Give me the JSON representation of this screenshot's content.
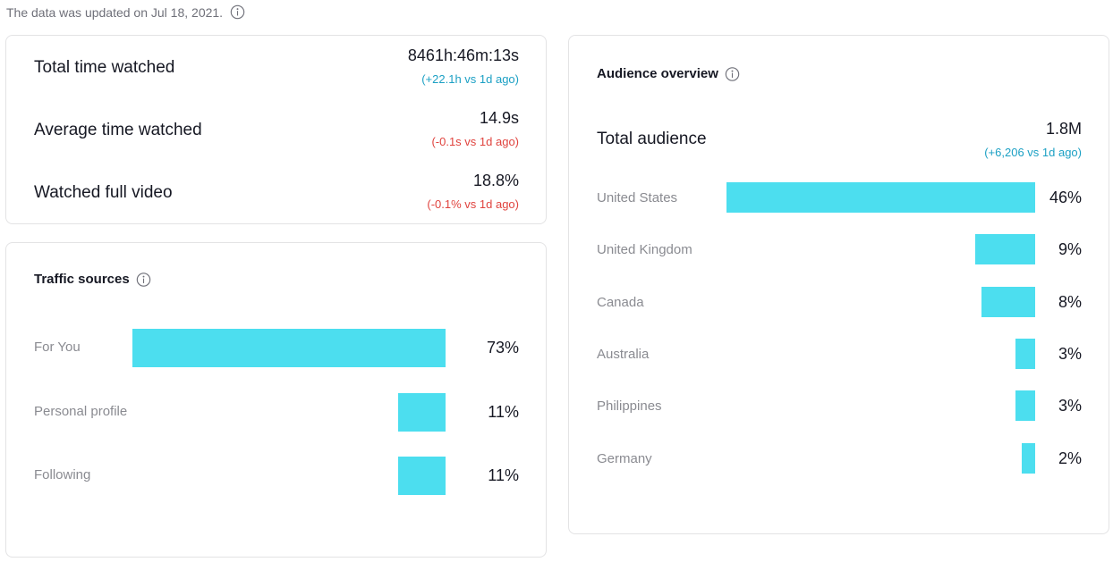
{
  "update_notice": "The data was updated on Jul 18, 2021.",
  "icons": {
    "info": "info-circle-icon"
  },
  "colors": {
    "bar": "#4cdeef",
    "delta_up": "#1ca0c4",
    "delta_down": "#e0433e"
  },
  "stats": [
    {
      "label": "Total time watched",
      "value": "8461h:46m:13s",
      "delta": "(+22.1h vs 1d ago)",
      "trend": "up"
    },
    {
      "label": "Average time watched",
      "value": "14.9s",
      "delta": "(-0.1s vs 1d ago)",
      "trend": "down"
    },
    {
      "label": "Watched full video",
      "value": "18.8%",
      "delta": "(-0.1% vs 1d ago)",
      "trend": "down"
    }
  ],
  "traffic": {
    "title": "Traffic sources",
    "items": [
      {
        "label": "For You",
        "pct_text": "73%",
        "share": 0.73
      },
      {
        "label": "Personal profile",
        "pct_text": "11%",
        "share": 0.11
      },
      {
        "label": "Following",
        "pct_text": "11%",
        "share": 0.11
      }
    ]
  },
  "audience": {
    "title": "Audience overview",
    "total_label": "Total audience",
    "total_value": "1.8M",
    "total_delta": "(+6,206 vs 1d ago)",
    "countries": [
      {
        "label": "United States",
        "pct_text": "46%",
        "share": 0.46
      },
      {
        "label": "United Kingdom",
        "pct_text": "9%",
        "share": 0.09
      },
      {
        "label": "Canada",
        "pct_text": "8%",
        "share": 0.08
      },
      {
        "label": "Australia",
        "pct_text": "3%",
        "share": 0.03
      },
      {
        "label": "Philippines",
        "pct_text": "3%",
        "share": 0.03
      },
      {
        "label": "Germany",
        "pct_text": "2%",
        "share": 0.02
      }
    ]
  }
}
